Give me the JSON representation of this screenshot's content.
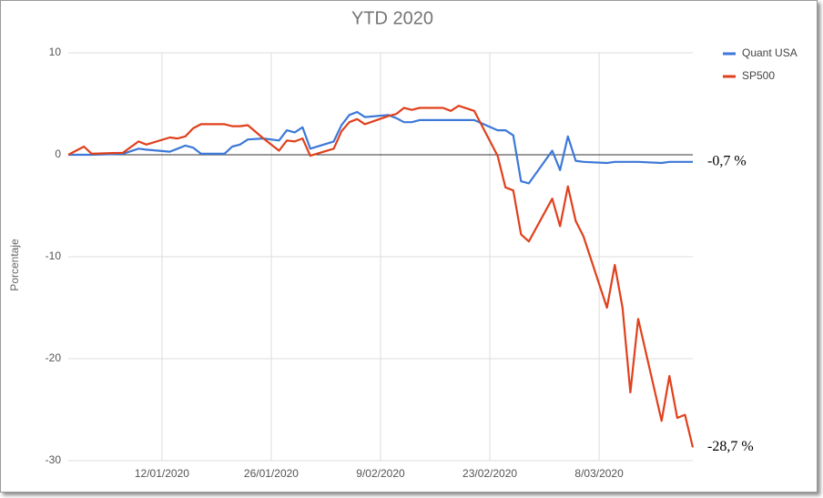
{
  "chart_data": {
    "type": "line",
    "title": "YTD 2020",
    "y_label": "Porcentaje",
    "x": [
      "2019-12-31",
      "2020-01-02",
      "2020-01-03",
      "2020-01-07",
      "2020-01-09",
      "2020-01-10",
      "2020-01-13",
      "2020-01-14",
      "2020-01-15",
      "2020-01-16",
      "2020-01-17",
      "2020-01-20",
      "2020-01-21",
      "2020-01-22",
      "2020-01-23",
      "2020-01-25",
      "2020-01-27",
      "2020-01-28",
      "2020-01-29",
      "2020-01-30",
      "2020-01-31",
      "2020-02-03",
      "2020-02-04",
      "2020-02-05",
      "2020-02-06",
      "2020-02-07",
      "2020-02-10",
      "2020-02-11",
      "2020-02-12",
      "2020-02-13",
      "2020-02-14",
      "2020-02-17",
      "2020-02-18",
      "2020-02-19",
      "2020-02-21",
      "2020-02-24",
      "2020-02-25",
      "2020-02-26",
      "2020-02-27",
      "2020-02-28",
      "2020-03-02",
      "2020-03-03",
      "2020-03-04",
      "2020-03-05",
      "2020-03-06",
      "2020-03-09",
      "2020-03-10",
      "2020-03-11",
      "2020-03-12",
      "2020-03-13",
      "2020-03-16",
      "2020-03-17",
      "2020-03-18",
      "2020-03-19",
      "2020-03-20"
    ],
    "series": [
      {
        "name": "Quant USA",
        "color": "#3c78d8",
        "values": [
          0,
          0,
          0,
          0.1,
          0.6,
          0.5,
          0.3,
          0.6,
          0.9,
          0.7,
          0.1,
          0.1,
          0.8,
          1.0,
          1.5,
          1.6,
          1.4,
          2.4,
          2.2,
          2.7,
          0.6,
          1.3,
          2.9,
          3.9,
          4.2,
          3.7,
          3.9,
          3.6,
          3.2,
          3.2,
          3.4,
          3.4,
          3.4,
          3.4,
          3.4,
          2.4,
          2.4,
          1.9,
          -2.6,
          -2.8,
          0.4,
          -1.5,
          1.8,
          -0.6,
          -0.7,
          -0.8,
          -0.7,
          -0.7,
          -0.7,
          -0.7,
          -0.8,
          -0.7,
          -0.7,
          -0.7,
          -0.7
        ]
      },
      {
        "name": "SP500",
        "color": "#e0401c",
        "values": [
          0,
          0.8,
          0.1,
          0.2,
          1.3,
          1.0,
          1.7,
          1.6,
          1.8,
          2.6,
          3.0,
          3.0,
          2.8,
          2.8,
          2.9,
          1.6,
          0.4,
          1.4,
          1.3,
          1.6,
          -0.1,
          0.6,
          2.3,
          3.2,
          3.5,
          3.0,
          3.8,
          4.0,
          4.6,
          4.4,
          4.6,
          4.6,
          4.3,
          4.8,
          4.3,
          -0.1,
          -3.2,
          -3.5,
          -7.8,
          -8.5,
          -4.3,
          -7.0,
          -3.1,
          -6.5,
          -8.0,
          -15.0,
          -10.8,
          -15.0,
          -23.3,
          -16.1,
          -26.1,
          -21.7,
          -25.8,
          -25.5,
          -28.7
        ]
      }
    ],
    "annotations": [
      "-0,7 %",
      "-28,7 %"
    ],
    "xlim": [
      "2019-12-31",
      "2020-03-20"
    ],
    "xticks": [
      {
        "value": "2020-01-12",
        "label": "12/01/2020"
      },
      {
        "value": "2020-01-26",
        "label": "26/01/2020"
      },
      {
        "value": "2020-02-09",
        "label": "9/02/2020"
      },
      {
        "value": "2020-02-23",
        "label": "23/02/2020"
      },
      {
        "value": "2020-03-08",
        "label": "8/03/2020"
      }
    ],
    "ylim": [
      -30,
      10
    ],
    "yticks": [
      -30,
      -20,
      -10,
      0,
      10
    ],
    "grid": true,
    "legend": "right"
  }
}
